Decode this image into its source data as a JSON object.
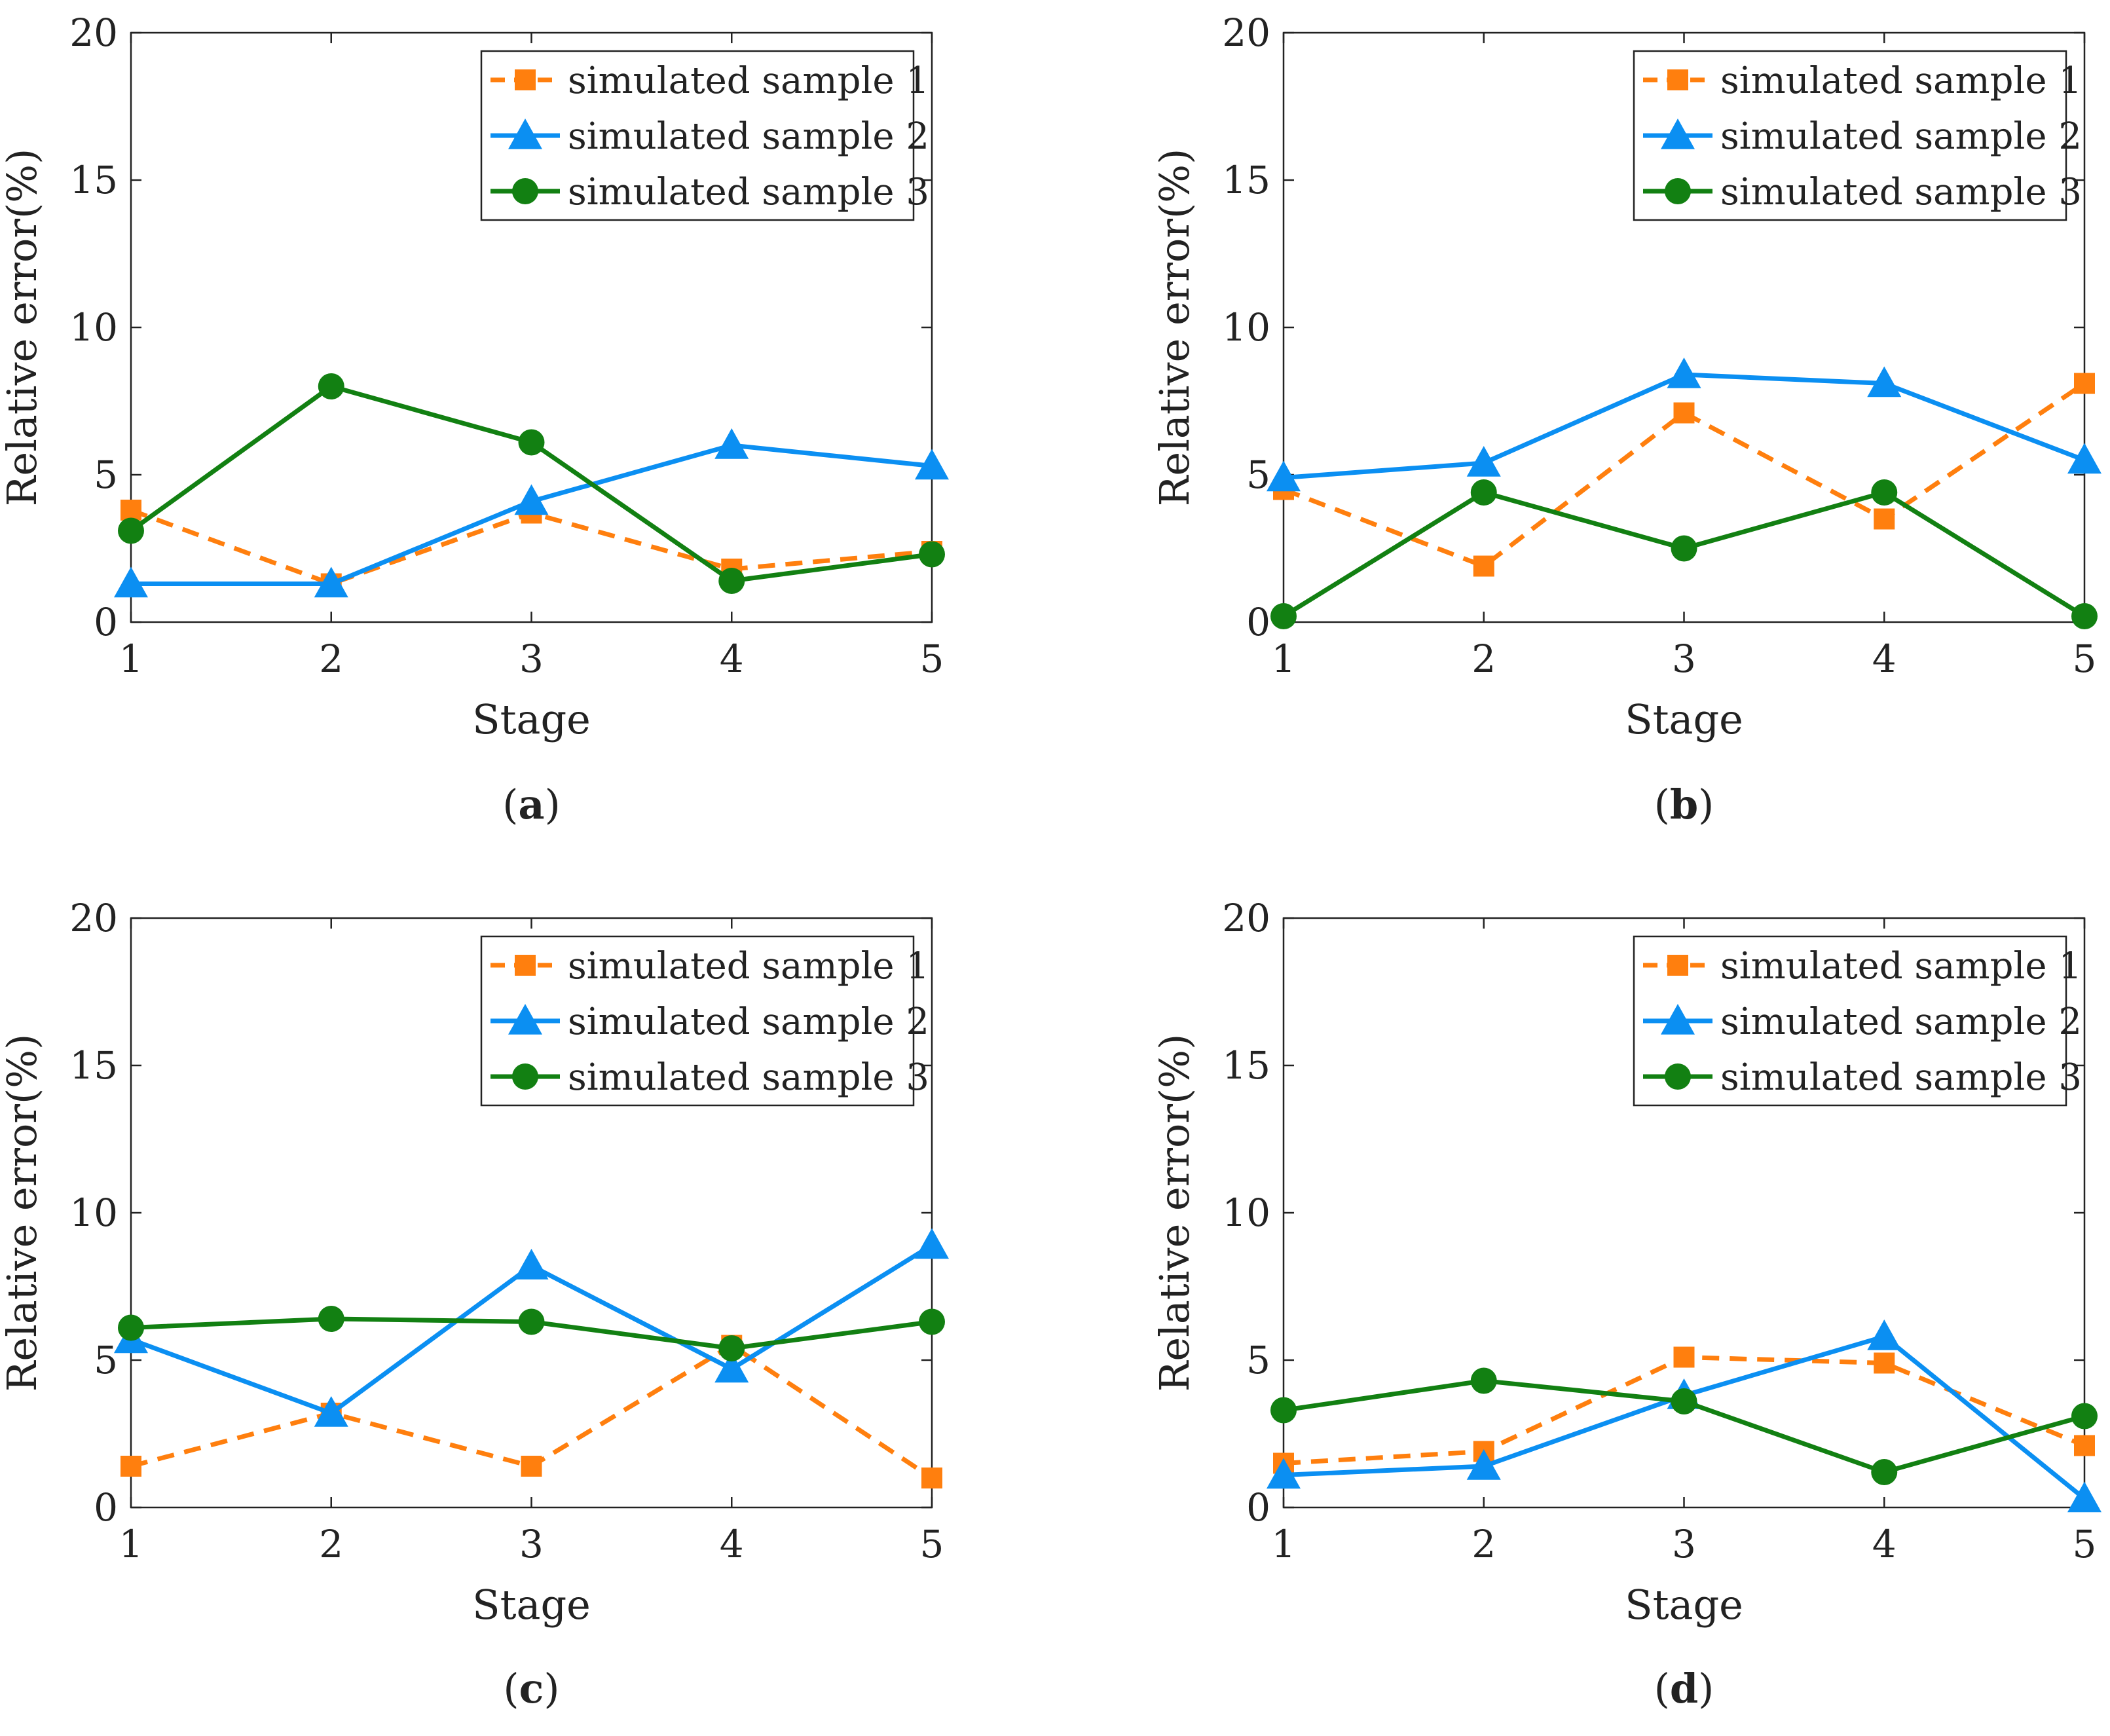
{
  "figure": {
    "panel_labels": [
      {
        "open": "(",
        "letter": "a",
        "close": ")"
      },
      {
        "open": "(",
        "letter": "b",
        "close": ")"
      },
      {
        "open": "(",
        "letter": "c",
        "close": ")"
      },
      {
        "open": "(",
        "letter": "d",
        "close": ")"
      }
    ]
  },
  "chart_data": [
    {
      "type": "line",
      "panel": "a",
      "title": "",
      "xlabel": "Stage",
      "ylabel": "Relative error(%)",
      "x": [
        1,
        2,
        3,
        4,
        5
      ],
      "xticks": [
        "1",
        "2",
        "3",
        "4",
        "5"
      ],
      "yticks": [
        "0",
        "5",
        "10",
        "15",
        "20"
      ],
      "xlim": [
        1,
        5
      ],
      "ylim": [
        0,
        20
      ],
      "grid": false,
      "legend_position": "top-right",
      "series": [
        {
          "name": "simulated sample 1",
          "color": "#ff7f0e",
          "marker": "square",
          "line": "dashed",
          "values": [
            3.8,
            1.3,
            3.7,
            1.8,
            2.4
          ]
        },
        {
          "name": "simulated sample 2",
          "color": "#0b8ff2",
          "marker": "triangle",
          "line": "solid",
          "values": [
            1.3,
            1.3,
            4.1,
            6.0,
            5.3
          ]
        },
        {
          "name": "simulated sample 3",
          "color": "#128012",
          "marker": "circle",
          "line": "solid",
          "values": [
            3.1,
            8.0,
            6.1,
            1.4,
            2.3
          ]
        }
      ]
    },
    {
      "type": "line",
      "panel": "b",
      "title": "",
      "xlabel": "Stage",
      "ylabel": "Relative error(%)",
      "x": [
        1,
        2,
        3,
        4,
        5
      ],
      "xticks": [
        "1",
        "2",
        "3",
        "4",
        "5"
      ],
      "yticks": [
        "0",
        "5",
        "10",
        "15",
        "20"
      ],
      "xlim": [
        1,
        5
      ],
      "ylim": [
        0,
        20
      ],
      "grid": false,
      "legend_position": "top-right",
      "series": [
        {
          "name": "simulated sample 1",
          "color": "#ff7f0e",
          "marker": "square",
          "line": "dashed",
          "values": [
            4.5,
            1.9,
            7.1,
            3.5,
            8.1
          ]
        },
        {
          "name": "simulated sample 2",
          "color": "#0b8ff2",
          "marker": "triangle",
          "line": "solid",
          "values": [
            4.9,
            5.4,
            8.4,
            8.1,
            5.5
          ]
        },
        {
          "name": "simulated sample 3",
          "color": "#128012",
          "marker": "circle",
          "line": "solid",
          "values": [
            0.2,
            4.4,
            2.5,
            4.4,
            0.2
          ]
        }
      ]
    },
    {
      "type": "line",
      "panel": "c",
      "title": "",
      "xlabel": "Stage",
      "ylabel": "Relative error(%)",
      "x": [
        1,
        2,
        3,
        4,
        5
      ],
      "xticks": [
        "1",
        "2",
        "3",
        "4",
        "5"
      ],
      "yticks": [
        "0",
        "5",
        "10",
        "15",
        "20"
      ],
      "xlim": [
        1,
        5
      ],
      "ylim": [
        0,
        20
      ],
      "grid": false,
      "legend_position": "top-right",
      "series": [
        {
          "name": "simulated sample 1",
          "color": "#ff7f0e",
          "marker": "square",
          "line": "dashed",
          "values": [
            1.4,
            3.2,
            1.4,
            5.5,
            1.0
          ]
        },
        {
          "name": "simulated sample 2",
          "color": "#0b8ff2",
          "marker": "triangle",
          "line": "solid",
          "values": [
            5.7,
            3.2,
            8.2,
            4.7,
            8.9
          ]
        },
        {
          "name": "simulated sample 3",
          "color": "#128012",
          "marker": "circle",
          "line": "solid",
          "values": [
            6.1,
            6.4,
            6.3,
            5.4,
            6.3
          ]
        }
      ]
    },
    {
      "type": "line",
      "panel": "d",
      "title": "",
      "xlabel": "Stage",
      "ylabel": "Relative error(%)",
      "x": [
        1,
        2,
        3,
        4,
        5
      ],
      "xticks": [
        "1",
        "2",
        "3",
        "4",
        "5"
      ],
      "yticks": [
        "0",
        "5",
        "10",
        "15",
        "20"
      ],
      "xlim": [
        1,
        5
      ],
      "ylim": [
        0,
        20
      ],
      "grid": false,
      "legend_position": "top-right",
      "series": [
        {
          "name": "simulated sample 1",
          "color": "#ff7f0e",
          "marker": "square",
          "line": "dashed",
          "values": [
            1.5,
            1.9,
            5.1,
            4.9,
            2.1
          ]
        },
        {
          "name": "simulated sample 2",
          "color": "#0b8ff2",
          "marker": "triangle",
          "line": "solid",
          "values": [
            1.1,
            1.4,
            3.8,
            5.8,
            0.3
          ]
        },
        {
          "name": "simulated sample 3",
          "color": "#128012",
          "marker": "circle",
          "line": "solid",
          "values": [
            3.3,
            4.3,
            3.6,
            1.2,
            3.1
          ]
        }
      ]
    }
  ]
}
